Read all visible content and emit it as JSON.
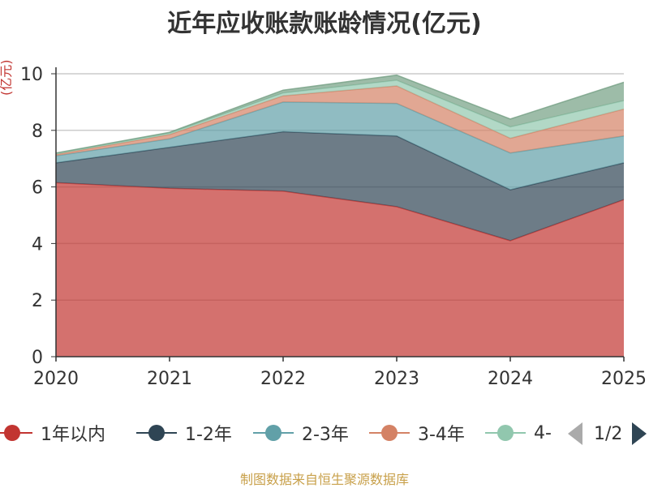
{
  "chart_data": {
    "type": "area",
    "title": "近年应收账款账龄情况(亿元)",
    "ylabel": "(亿元)",
    "xlabel": "",
    "categories": [
      "2020",
      "2021",
      "2022",
      "2023",
      "2024",
      "2025"
    ],
    "ylim": [
      0,
      10
    ],
    "yticks": [
      "0",
      "2",
      "4",
      "6",
      "8",
      "10"
    ],
    "stacked": true,
    "grid": true,
    "series": [
      {
        "name": "1年以内",
        "color": "#c23531",
        "values": [
          6.15,
          5.95,
          5.85,
          5.3,
          4.1,
          5.55
        ]
      },
      {
        "name": "1-2年",
        "color": "#2f4554",
        "values": [
          0.7,
          1.45,
          2.1,
          2.5,
          1.8,
          1.3
        ]
      },
      {
        "name": "2-3年",
        "color": "#61a0a8",
        "values": [
          0.25,
          0.3,
          1.05,
          1.15,
          1.3,
          0.95
        ]
      },
      {
        "name": "3-4年",
        "color": "#d48265",
        "values": [
          0.05,
          0.15,
          0.22,
          0.62,
          0.52,
          0.95
        ]
      },
      {
        "name": "4-",
        "color": "#91c7ae",
        "values": [
          0.03,
          0.05,
          0.1,
          0.2,
          0.4,
          0.3
        ]
      },
      {
        "name": "",
        "color": "#749f83",
        "values": [
          0.02,
          0.03,
          0.1,
          0.18,
          0.28,
          0.65
        ]
      }
    ],
    "legend": {
      "position": "bottom",
      "page": "1/2"
    }
  },
  "source_note": "制图数据来自恒生聚源数据库"
}
